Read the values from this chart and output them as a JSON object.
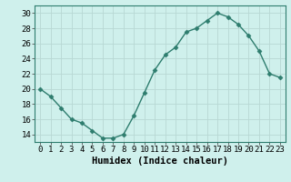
{
  "x": [
    0,
    1,
    2,
    3,
    4,
    5,
    6,
    7,
    8,
    9,
    10,
    11,
    12,
    13,
    14,
    15,
    16,
    17,
    18,
    19,
    20,
    21,
    22,
    23
  ],
  "y": [
    20,
    19,
    17.5,
    16,
    15.5,
    14.5,
    13.5,
    13.5,
    14,
    16.5,
    19.5,
    22.5,
    24.5,
    25.5,
    27.5,
    28,
    29,
    30,
    29.5,
    28.5,
    27,
    25,
    22,
    21.5
  ],
  "line_color": "#2e7d6e",
  "marker": "D",
  "marker_size": 2.5,
  "bg_color": "#cff0ec",
  "grid_color": "#b8d8d4",
  "xlabel": "Humidex (Indice chaleur)",
  "xlim": [
    -0.5,
    23.5
  ],
  "ylim": [
    13,
    31
  ],
  "yticks": [
    14,
    16,
    18,
    20,
    22,
    24,
    26,
    28,
    30
  ],
  "xticks": [
    0,
    1,
    2,
    3,
    4,
    5,
    6,
    7,
    8,
    9,
    10,
    11,
    12,
    13,
    14,
    15,
    16,
    17,
    18,
    19,
    20,
    21,
    22,
    23
  ],
  "xlabel_fontsize": 7.5,
  "tick_fontsize": 6.5,
  "linewidth": 1.0
}
